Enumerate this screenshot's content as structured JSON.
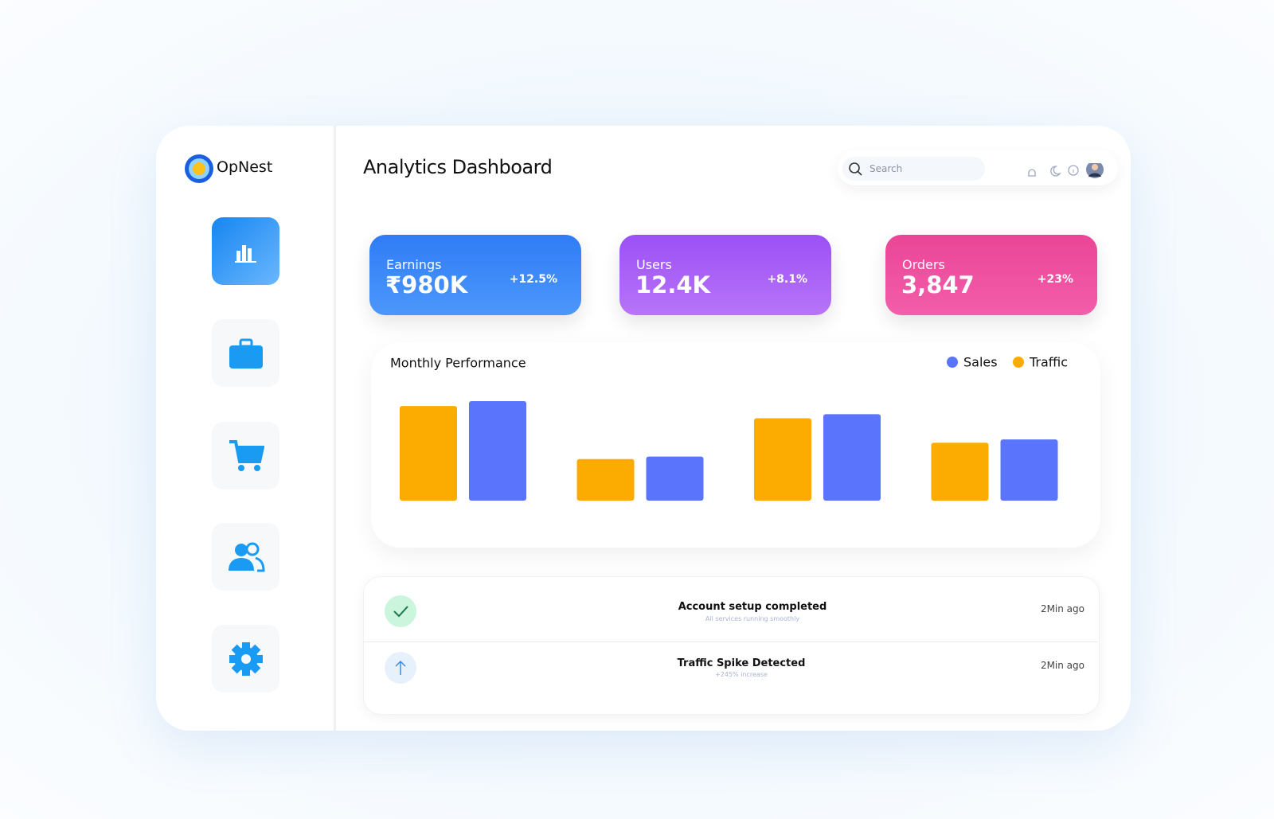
{
  "sidebar": {
    "brand": "OpNest"
  },
  "header": {
    "title": "Analytics Dashboard",
    "search_placeholder": "Search"
  },
  "stats": [
    {
      "label": "Earnings",
      "value": "₹980K",
      "change": "+12.5%"
    },
    {
      "label": "Users",
      "value": "12.4K",
      "change": "+8.1%"
    },
    {
      "label": "Orders",
      "value": "3,847",
      "change": "+23%"
    }
  ],
  "chart_data": {
    "type": "bar",
    "title": "Monthly Performance",
    "categories": [
      null,
      null,
      null,
      null
    ],
    "series": [
      {
        "name": "Sales",
        "color": "#5a74fb",
        "values": [
          122,
          54,
          106,
          75
        ]
      },
      {
        "name": "Traffic",
        "color": "#fcab00",
        "values": [
          116,
          51,
          101,
          71
        ]
      }
    ]
  },
  "notifications": [
    {
      "title": "Account setup completed",
      "subtitle": "All services running smoothly",
      "time": "2Min ago"
    },
    {
      "title": "Traffic Spike Detected",
      "subtitle": "+245% increase",
      "time": "2Min ago"
    }
  ]
}
